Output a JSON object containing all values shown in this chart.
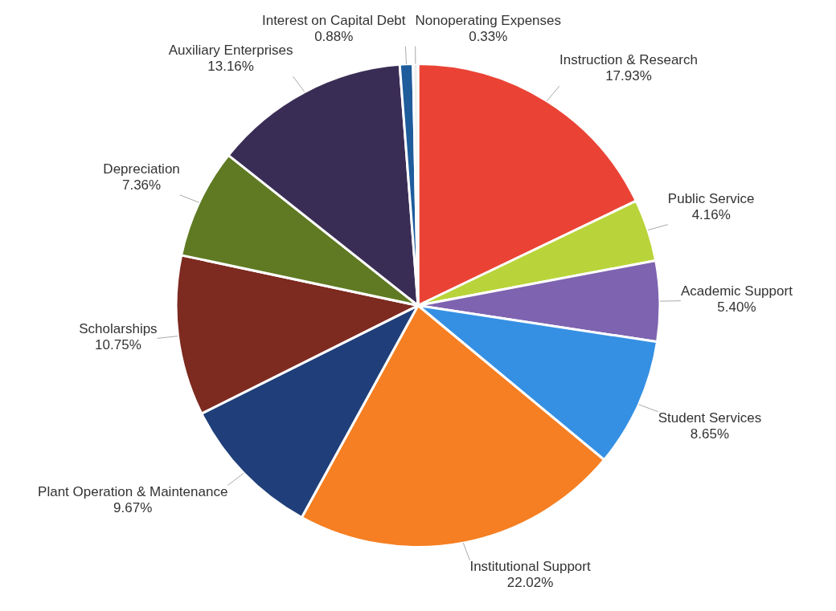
{
  "chart_data": {
    "type": "pie",
    "categories": [
      "Instruction & Research",
      "Public Service",
      "Academic Support",
      "Student Services",
      "Institutional Support",
      "Plant Operation & Maintenance",
      "Scholarships",
      "Depreciation",
      "Auxiliary Enterprises",
      "Interest on Capital Debt",
      "Nonoperating Expenses"
    ],
    "values": [
      17.93,
      4.16,
      5.4,
      8.65,
      22.02,
      9.67,
      10.75,
      7.36,
      13.16,
      0.88,
      0.33
    ],
    "colors": [
      "#ea4335",
      "#b9d43a",
      "#7e63b0",
      "#3590e3",
      "#f57f22",
      "#203f7a",
      "#7d2a20",
      "#5f7a22",
      "#3a2d55",
      "#1e5c9c",
      "#eeeeee"
    ],
    "value_labels": [
      "17.93%",
      "4.16%",
      "5.40%",
      "8.65%",
      "22.02%",
      "9.67%",
      "10.75%",
      "7.36%",
      "13.16%",
      "0.88%",
      "0.33%"
    ],
    "legend": false
  }
}
